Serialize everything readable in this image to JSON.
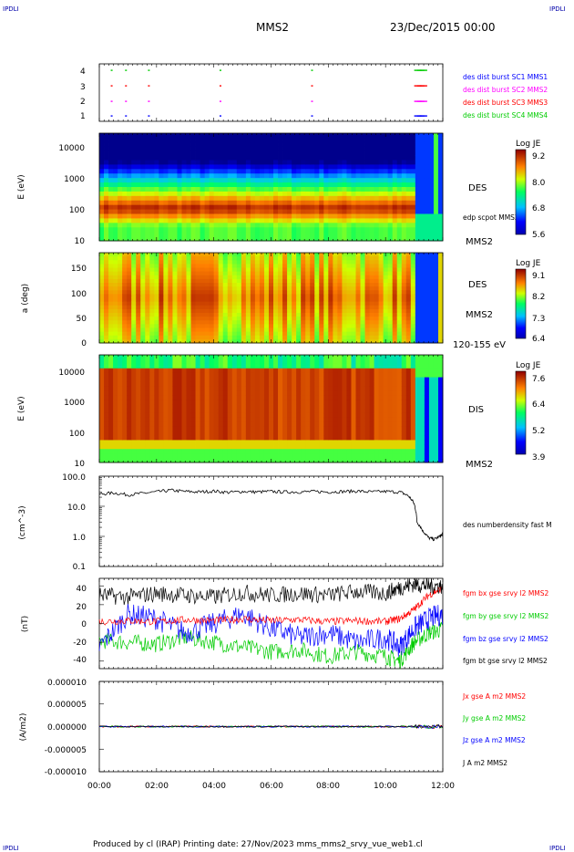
{
  "header": {
    "logo_left": "IPDLI",
    "logo_right": "IPDLI",
    "spacecraft": "MMS2",
    "datetime": "23/Dec/2015 00:00"
  },
  "footer": {
    "produced": "Produced by cl (IRAP)   Printing date: 27/Nov/2023   mms_mms2_srvy_vue_web1.cl",
    "logo_left": "IPDLI",
    "logo_right": "IPDLI"
  },
  "time_axis": {
    "ticks": [
      "00:00",
      "02:00",
      "04:00",
      "06:00",
      "08:00",
      "10:00",
      "12:00"
    ],
    "range_hours": [
      0,
      12
    ]
  },
  "colors": {
    "red": "#ff0000",
    "green": "#00cc00",
    "blue": "#0000ff",
    "magenta": "#ff00ff",
    "black": "#000000"
  },
  "chart_data": [
    {
      "type": "scatter",
      "panel": "burst",
      "yticks": [
        "1",
        "2",
        "3",
        "4"
      ],
      "ylim": [
        0.5,
        4.5
      ],
      "legend": [
        {
          "label": "des dist burst SC1 MMS1",
          "color": "#0000ff"
        },
        {
          "label": "des dist burst SC2 MMS2",
          "color": "#ff00ff"
        },
        {
          "label": "des dist burst SC3 MMS3",
          "color": "#ff0000"
        },
        {
          "label": "des dist burst SC4 MMS4",
          "color": "#00cc00"
        }
      ],
      "burst_times_hours": [
        0.4,
        0.9,
        1.7,
        4.2,
        7.4,
        11.0,
        11.1,
        11.2
      ]
    },
    {
      "type": "heatmap",
      "panel": "des_energy",
      "ylabel": "E (eV)",
      "yscale": "log",
      "ylim": [
        10,
        30000
      ],
      "yticks": [
        "10",
        "100",
        "1000",
        "10000"
      ],
      "colorbar": {
        "title": "Log JE",
        "ticks": [
          "9.2",
          "8.0",
          "6.8",
          "5.6"
        ],
        "range": [
          5.6,
          9.2
        ]
      },
      "right_labels": [
        "DES",
        "edp scpot MMS2",
        "MMS2"
      ]
    },
    {
      "type": "heatmap",
      "panel": "des_pitch",
      "ylabel": "a (deg)",
      "ylim": [
        0,
        180
      ],
      "yticks": [
        "0",
        "50",
        "100",
        "150"
      ],
      "colorbar": {
        "title": "Log JE",
        "ticks": [
          "9.1",
          "8.2",
          "7.3",
          "6.4"
        ],
        "range": [
          6.4,
          9.1
        ]
      },
      "right_labels": [
        "DES",
        "MMS2",
        "120-155 eV"
      ]
    },
    {
      "type": "heatmap",
      "panel": "dis_energy",
      "ylabel": "E (eV)",
      "yscale": "log",
      "ylim": [
        10,
        30000
      ],
      "yticks": [
        "10",
        "100",
        "1000",
        "10000"
      ],
      "colorbar": {
        "title": "Log JE",
        "ticks": [
          "7.6",
          "6.4",
          "5.2",
          "3.9"
        ],
        "range": [
          3.9,
          7.6
        ]
      },
      "right_labels": [
        "DIS",
        "MMS2"
      ]
    },
    {
      "type": "line",
      "panel": "density",
      "ylabel": "(cm^-3)",
      "yscale": "log",
      "ylim": [
        0.1,
        100
      ],
      "yticks": [
        "0.1",
        "1.0",
        "10.0",
        "100.0"
      ],
      "series": [
        {
          "name": "des numberdensity fast M",
          "color": "#000000",
          "x": [
            0,
            0.5,
            1,
            1.5,
            2,
            2.5,
            3,
            3.5,
            4,
            4.5,
            5,
            5.5,
            6,
            6.5,
            7,
            7.5,
            8,
            8.5,
            9,
            9.5,
            10,
            10.5,
            10.8,
            11,
            11.1,
            11.3,
            11.5,
            11.7,
            11.9,
            12
          ],
          "y": [
            25,
            28,
            24,
            27,
            30,
            34,
            31,
            30,
            32,
            29,
            31,
            30,
            31,
            30,
            30,
            31,
            30,
            31,
            32,
            30,
            31,
            30,
            22,
            12,
            3,
            1.5,
            0.9,
            0.8,
            1.0,
            1.2
          ]
        }
      ]
    },
    {
      "type": "line",
      "panel": "magnetic_field",
      "ylabel": "(nT)",
      "ylim": [
        -48,
        48
      ],
      "yticks": [
        "-40",
        "-20",
        "0",
        "20",
        "40"
      ],
      "series": [
        {
          "name": "fgm bx gse srvy l2 MMS2",
          "color": "#ff0000",
          "x": [
            0,
            1,
            2,
            3,
            4,
            5,
            6,
            7,
            8,
            9,
            10,
            10.5,
            11,
            11.5,
            12
          ],
          "y": [
            2,
            3,
            2,
            4,
            3,
            5,
            3,
            4,
            2,
            3,
            2,
            5,
            15,
            30,
            38
          ]
        },
        {
          "name": "fgm by gse srvy l2 MMS2",
          "color": "#00cc00",
          "x": [
            0,
            1,
            2,
            3,
            4,
            5,
            6,
            7,
            8,
            9,
            10,
            10.5,
            11,
            11.5,
            12
          ],
          "y": [
            -18,
            -20,
            -22,
            -15,
            -20,
            -25,
            -30,
            -28,
            -35,
            -30,
            -35,
            -40,
            -20,
            -10,
            -6
          ]
        },
        {
          "name": "fgm bz gse srvy l2 MMS2",
          "color": "#0000ff",
          "x": [
            0,
            1,
            2,
            3,
            4,
            5,
            6,
            7,
            8,
            9,
            10,
            10.5,
            11,
            11.5,
            12
          ],
          "y": [
            -25,
            10,
            5,
            -10,
            0,
            10,
            -5,
            -15,
            -10,
            -20,
            -15,
            -25,
            -5,
            5,
            10
          ]
        },
        {
          "name": "fgm bt gse srvy l2 MMS2",
          "color": "#000000",
          "x": [
            0,
            1,
            2,
            3,
            4,
            5,
            6,
            7,
            8,
            9,
            10,
            10.5,
            11,
            11.5,
            12
          ],
          "y": [
            30,
            28,
            32,
            30,
            28,
            33,
            30,
            32,
            30,
            34,
            32,
            38,
            42,
            40,
            40
          ]
        }
      ]
    },
    {
      "type": "line",
      "panel": "current",
      "ylabel": "(A/m2)",
      "ylim": [
        -0.0001,
        0.0001
      ],
      "yticks": [
        "-0.000010",
        "-0.000005",
        "0.000000",
        "0.000005",
        "0.000010"
      ],
      "series": [
        {
          "name": "Jx gse A m2 MMS2",
          "color": "#ff0000"
        },
        {
          "name": "Jy gse A m2 MMS2",
          "color": "#00cc00"
        },
        {
          "name": "Jz gse A m2 MMS2",
          "color": "#0000ff"
        },
        {
          "name": "J A m2 MMS2",
          "color": "#000000"
        }
      ]
    }
  ]
}
